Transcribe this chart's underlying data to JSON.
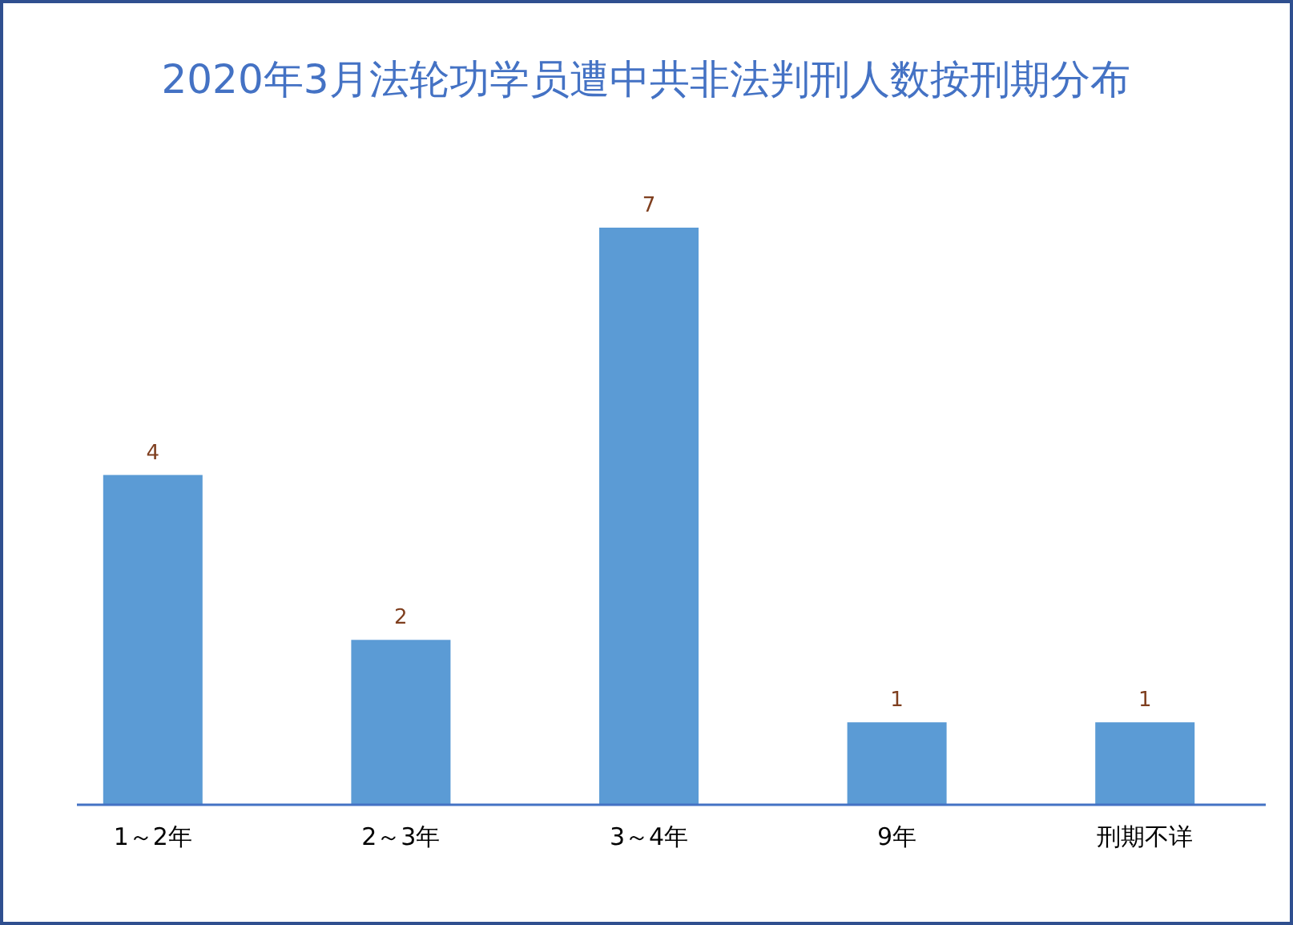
{
  "chart_data": {
    "type": "bar",
    "title": "2020年3月法轮功学员遭中共非法判刑人数按刑期分布",
    "categories": [
      "1～2年",
      "2～3年",
      "3～4年",
      "9年",
      "刑期不详"
    ],
    "values": [
      4,
      2,
      7,
      1,
      1
    ],
    "color": "#5b9bd5",
    "data_labels": true
  }
}
